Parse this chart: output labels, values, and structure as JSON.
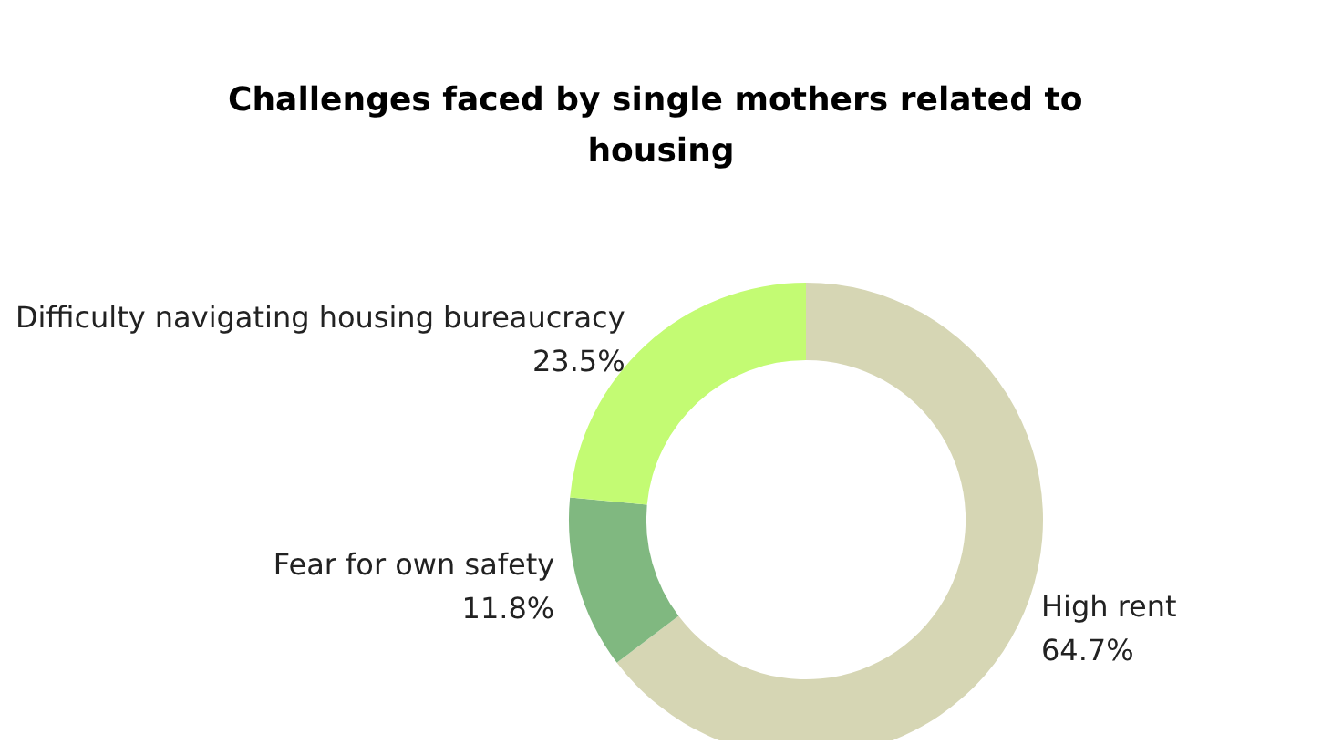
{
  "chart_data": {
    "type": "donut",
    "title": "Challenges faced by single mothers related to housing",
    "categories": [
      "High rent",
      "Fear for own safety",
      "Difficulty navigating housing bureaucracy"
    ],
    "values": [
      64.7,
      11.8,
      23.5
    ],
    "value_labels": [
      "64.7%",
      "11.8%",
      "23.5%"
    ],
    "colors": [
      "#d6d6b4",
      "#80b880",
      "#c3fb73"
    ],
    "legend": false
  }
}
